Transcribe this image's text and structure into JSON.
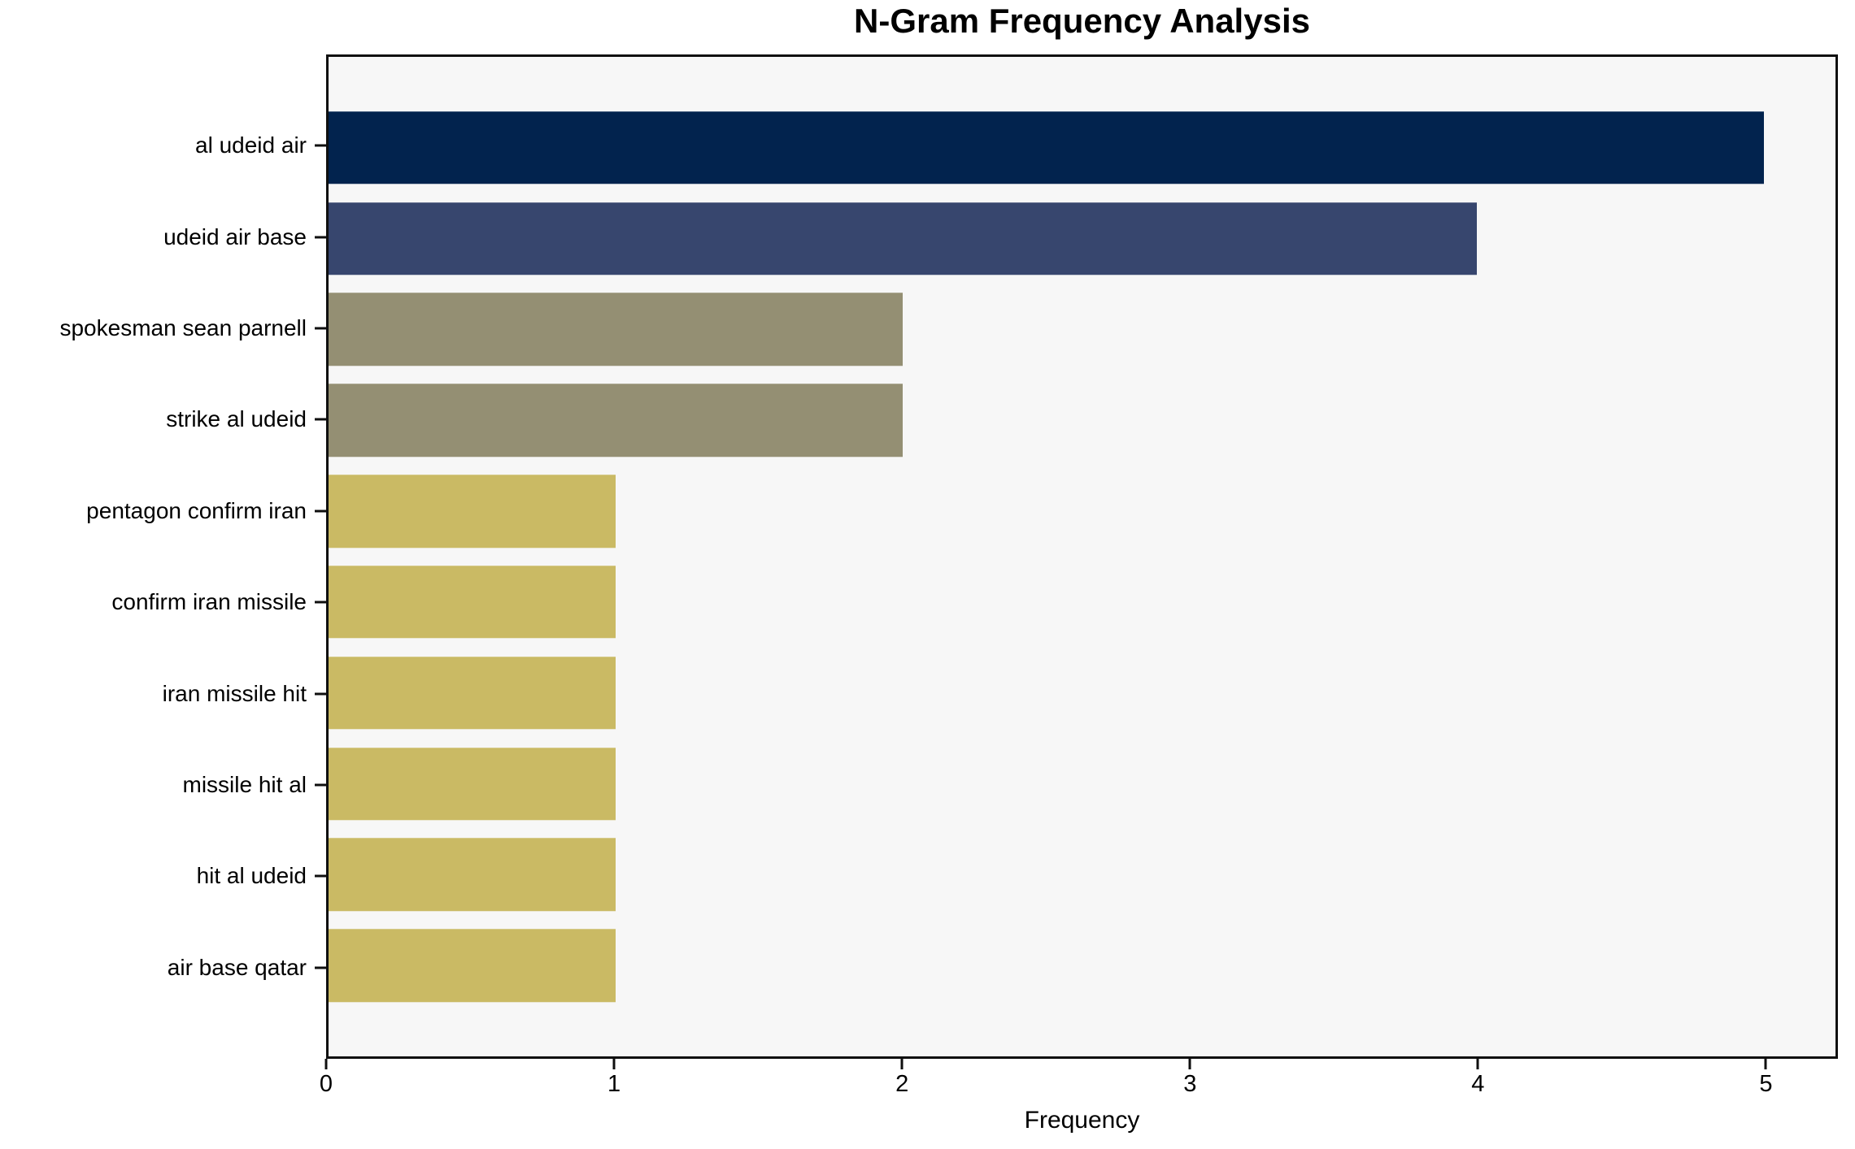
{
  "chart_data": {
    "type": "bar",
    "orientation": "horizontal",
    "title": "N-Gram Frequency Analysis",
    "xlabel": "Frequency",
    "ylabel": "",
    "categories": [
      "al udeid air",
      "udeid air base",
      "spokesman sean parnell",
      "strike al udeid",
      "pentagon confirm iran",
      "confirm iran missile",
      "iran missile hit",
      "missile hit al",
      "hit al udeid",
      "air base qatar"
    ],
    "values": [
      5,
      4,
      2,
      2,
      1,
      1,
      1,
      1,
      1,
      1
    ],
    "bar_colors": [
      "#02234e",
      "#37466e",
      "#948f73",
      "#948f73",
      "#caba64",
      "#caba64",
      "#caba64",
      "#caba64",
      "#caba64",
      "#caba64"
    ],
    "xlim": [
      0,
      5.25
    ],
    "xticks": [
      "0",
      "1",
      "2",
      "3",
      "4",
      "5"
    ],
    "grid": false,
    "legend_position": "none",
    "bar_height_fraction": 0.8,
    "colors": {
      "figure_background": "#ffffff",
      "plot_background": "#f7f7f7",
      "axis": "#0f0f0f",
      "text": "#000000"
    }
  }
}
